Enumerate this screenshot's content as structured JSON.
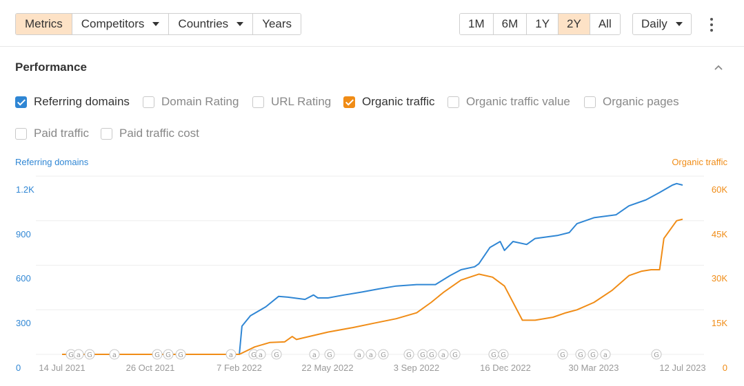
{
  "toolbar": {
    "tabs": [
      {
        "label": "Metrics",
        "active": true,
        "dropdown": false
      },
      {
        "label": "Competitors",
        "active": false,
        "dropdown": true
      },
      {
        "label": "Countries",
        "active": false,
        "dropdown": true
      },
      {
        "label": "Years",
        "active": false,
        "dropdown": false
      }
    ],
    "ranges": [
      {
        "label": "1M",
        "active": false
      },
      {
        "label": "6M",
        "active": false
      },
      {
        "label": "1Y",
        "active": false
      },
      {
        "label": "2Y",
        "active": true
      },
      {
        "label": "All",
        "active": false
      }
    ],
    "interval": "Daily",
    "active_color": "#fde2c6"
  },
  "section": {
    "title": "Performance"
  },
  "metrics": [
    {
      "label": "Referring domains",
      "checked": true,
      "color": "#2f86d4"
    },
    {
      "label": "Domain Rating",
      "checked": false
    },
    {
      "label": "URL Rating",
      "checked": false
    },
    {
      "label": "Organic traffic",
      "checked": true,
      "color": "#f08c16"
    },
    {
      "label": "Organic traffic value",
      "checked": false
    },
    {
      "label": "Organic pages",
      "checked": false
    },
    {
      "label": "Paid traffic",
      "checked": false
    },
    {
      "label": "Paid traffic cost",
      "checked": false
    }
  ],
  "chart_data": {
    "type": "line",
    "left_axis_label": "Referring domains",
    "right_axis_label": "Organic traffic",
    "left_ticks": [
      "1.2K",
      "900",
      "600",
      "300",
      "0"
    ],
    "right_ticks": [
      "60K",
      "45K",
      "30K",
      "15K",
      "0"
    ],
    "x_tick_labels": [
      "14 Jul 2021",
      "26 Oct 2021",
      "7 Feb 2022",
      "22 May 2022",
      "3 Sep 2022",
      "16 Dec 2022",
      "30 Mar 2023",
      "12 Jul 2023"
    ],
    "ylim_left": [
      0,
      1200
    ],
    "ylim_right": [
      0,
      60000
    ],
    "grid": true,
    "series": [
      {
        "name": "Referring domains",
        "axis": "left",
        "color": "#2f86d4",
        "x": [
          "2021-07-14",
          "2022-02-07",
          "2022-02-10",
          "2022-02-20",
          "2022-03-10",
          "2022-03-25",
          "2022-04-05",
          "2022-04-25",
          "2022-05-05",
          "2022-05-10",
          "2022-05-22",
          "2022-06-10",
          "2022-07-01",
          "2022-07-20",
          "2022-08-10",
          "2022-09-03",
          "2022-09-25",
          "2022-10-12",
          "2022-10-25",
          "2022-11-10",
          "2022-11-15",
          "2022-11-28",
          "2022-12-10",
          "2022-12-15",
          "2022-12-25",
          "2023-01-10",
          "2023-01-20",
          "2023-02-15",
          "2023-03-01",
          "2023-03-10",
          "2023-03-30",
          "2023-04-25",
          "2023-05-10",
          "2023-05-30",
          "2023-06-15",
          "2023-06-30",
          "2023-07-05",
          "2023-07-12"
        ],
        "values": [
          0,
          0,
          190,
          260,
          320,
          390,
          385,
          370,
          400,
          380,
          380,
          400,
          420,
          440,
          460,
          470,
          470,
          530,
          570,
          590,
          610,
          720,
          760,
          700,
          760,
          740,
          780,
          800,
          820,
          880,
          920,
          940,
          1000,
          1040,
          1090,
          1140,
          1150,
          1140
        ]
      },
      {
        "name": "Organic traffic",
        "axis": "right",
        "color": "#f08c16",
        "x": [
          "2021-07-14",
          "2022-02-07",
          "2022-02-25",
          "2022-03-15",
          "2022-04-01",
          "2022-04-10",
          "2022-04-15",
          "2022-05-22",
          "2022-06-20",
          "2022-07-15",
          "2022-08-10",
          "2022-09-03",
          "2022-09-20",
          "2022-10-05",
          "2022-10-25",
          "2022-11-15",
          "2022-12-01",
          "2022-12-15",
          "2023-01-05",
          "2023-01-20",
          "2023-02-10",
          "2023-02-25",
          "2023-03-10",
          "2023-03-30",
          "2023-04-20",
          "2023-05-10",
          "2023-05-25",
          "2023-06-05",
          "2023-06-15",
          "2023-06-20",
          "2023-07-05",
          "2023-07-12"
        ],
        "values": [
          0,
          0,
          2500,
          4000,
          4200,
          6000,
          5000,
          7500,
          9000,
          10500,
          12000,
          14000,
          17500,
          21000,
          25000,
          27000,
          26000,
          23000,
          11500,
          11500,
          12500,
          14000,
          15000,
          17500,
          21500,
          26500,
          28000,
          28500,
          28500,
          39000,
          45000,
          45500
        ]
      }
    ],
    "annotations": [
      "G",
      "a",
      "G",
      "a",
      "G",
      "G",
      "G",
      "a",
      "G",
      "a",
      "G",
      "a",
      "G",
      "a",
      "a",
      "G",
      "G",
      "G",
      "G",
      "a",
      "G",
      "G",
      "G",
      "G",
      "G",
      "G",
      "a",
      "G",
      "a"
    ]
  }
}
